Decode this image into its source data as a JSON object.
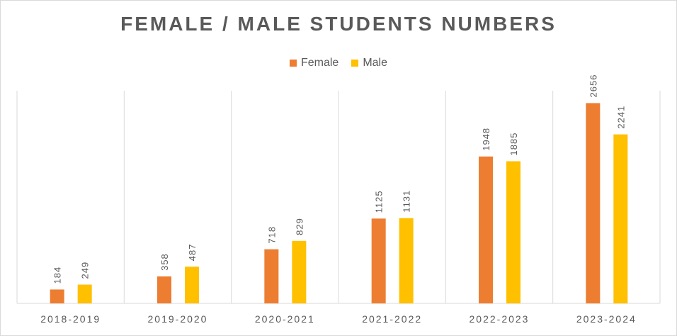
{
  "chart_data": {
    "type": "bar",
    "title": "FEMALE / MALE STUDENTS NUMBERS",
    "xlabel": "",
    "ylabel": "",
    "ylim": [
      0,
      2820
    ],
    "grid": "vertical category separators",
    "legend_position": "top",
    "categories": [
      "2018-2019",
      "2019-2020",
      "2020-2021",
      "2021-2022",
      "2022-2023",
      "2023-2024"
    ],
    "series": [
      {
        "name": "Female",
        "color": "#ED7D31",
        "values": [
          184,
          358,
          718,
          1125,
          1948,
          2656
        ]
      },
      {
        "name": "Male",
        "color": "#FFC000",
        "values": [
          249,
          487,
          829,
          1131,
          1885,
          2241
        ]
      }
    ]
  }
}
